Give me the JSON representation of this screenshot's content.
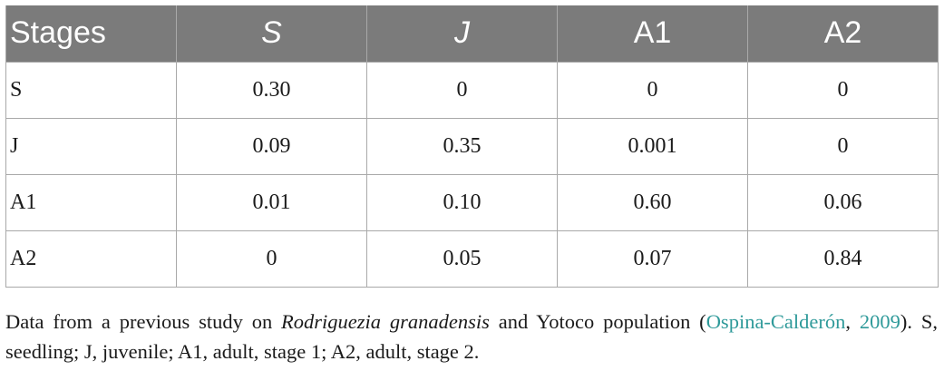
{
  "table": {
    "headers": [
      "Stages",
      "S",
      "J",
      "A1",
      "A2"
    ],
    "rows": [
      {
        "stage": "S",
        "values": [
          "0.30",
          "0",
          "0",
          "0"
        ]
      },
      {
        "stage": "J",
        "values": [
          "0.09",
          "0.35",
          "0.001",
          "0"
        ]
      },
      {
        "stage": "A1",
        "values": [
          "0.01",
          "0.10",
          "0.60",
          "0.06"
        ]
      },
      {
        "stage": "A2",
        "values": [
          "0",
          "0.05",
          "0.07",
          "0.84"
        ]
      }
    ]
  },
  "caption": {
    "part1": "Data from a previous study on ",
    "species": "Rodriguezia granadensis",
    "part2": " and Yotoco population (",
    "ref_author": "Ospina-Calderón",
    "ref_sep": ", ",
    "ref_year": "2009",
    "part3": "). S, seedling; J, juvenile; A1, adult, stage 1; A2, adult, stage 2."
  },
  "colors": {
    "header_bg": "#7b7b7b",
    "header_text": "#ffffff",
    "border": "#a9a9a9",
    "link": "#2f9a9a"
  }
}
